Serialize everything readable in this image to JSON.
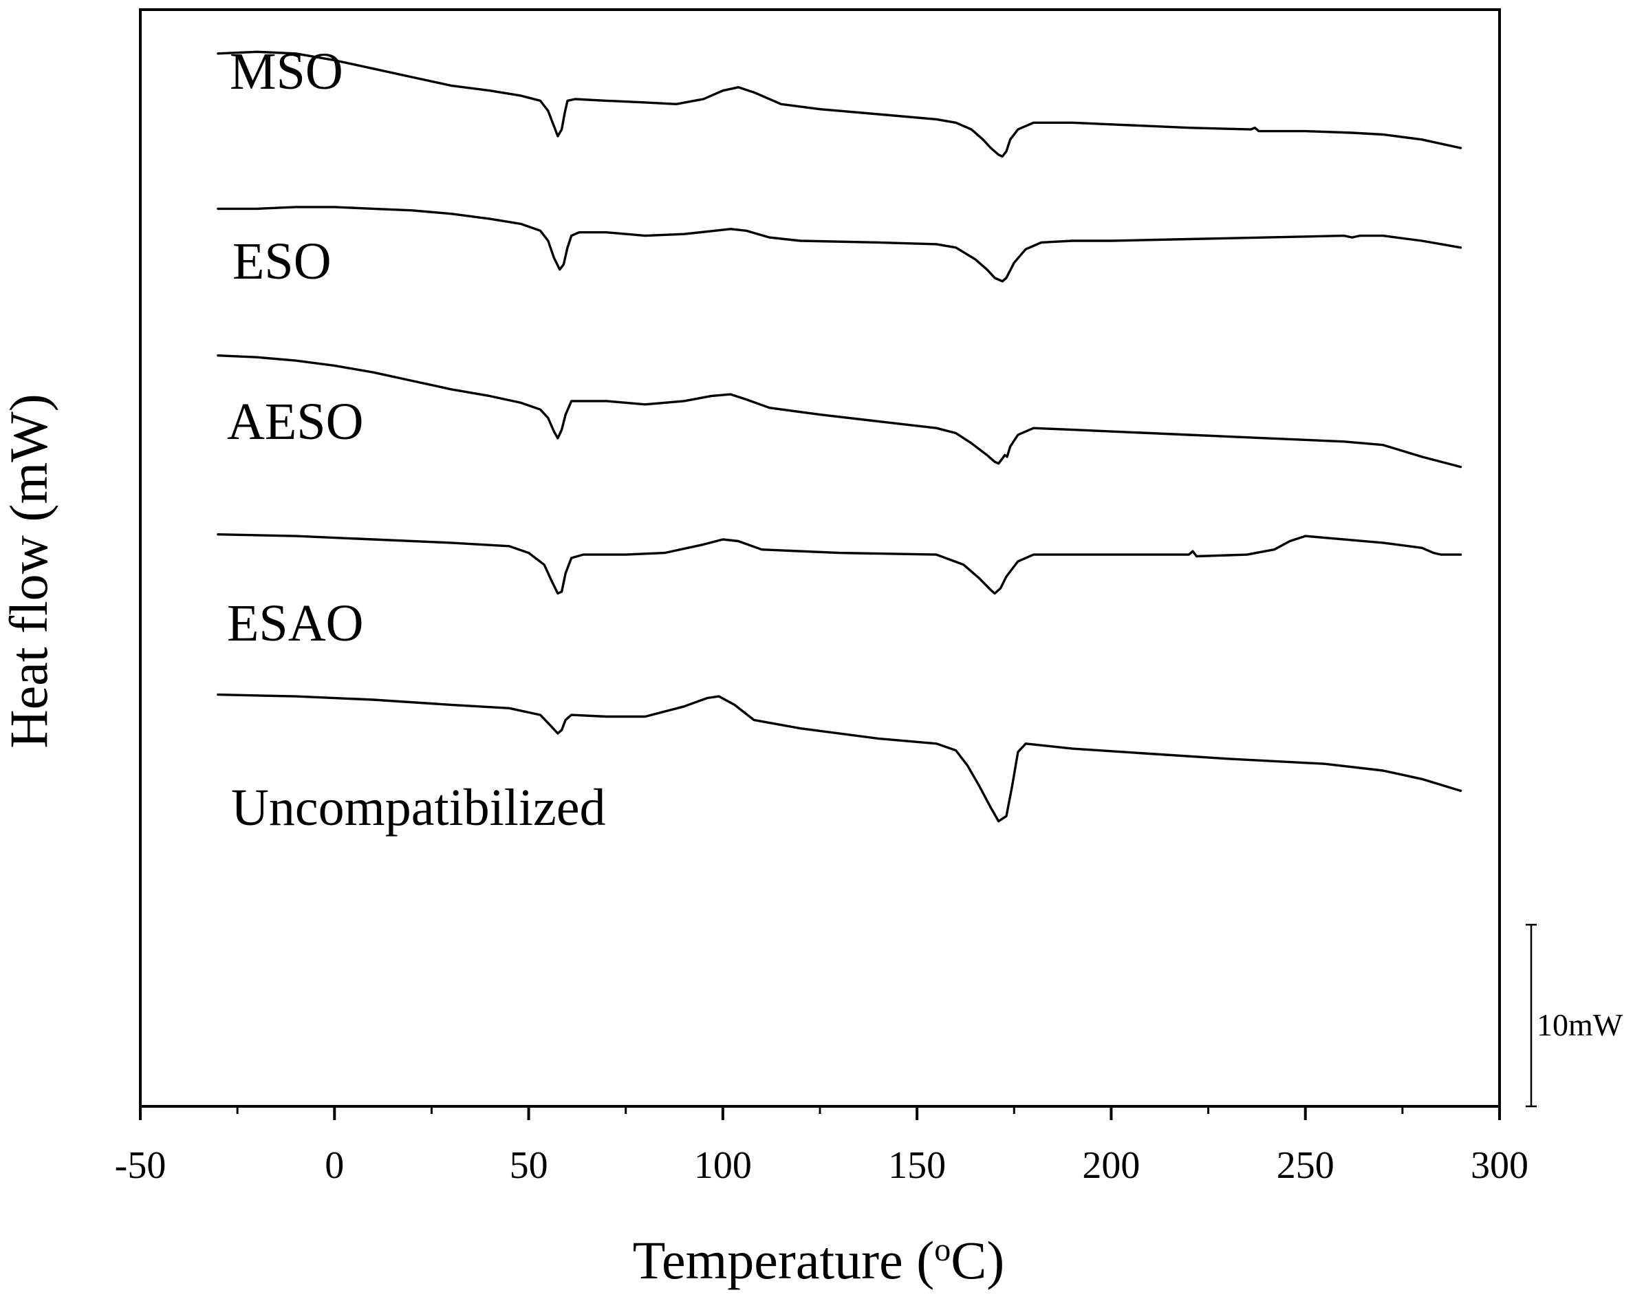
{
  "chart_data": {
    "type": "line",
    "title": "",
    "xlabel": "Temperature (",
    "xlabel_sup": "o",
    "xlabel_end": "C)",
    "ylabel": "Heat flow (mW)",
    "xlim": [
      -50,
      300
    ],
    "ylim": [
      -35,
      30
    ],
    "x_ticks": [
      -50,
      0,
      50,
      100,
      150,
      200,
      250,
      300
    ],
    "x_tick_labels": [
      "-50",
      "0",
      "50",
      "100",
      "150",
      "200",
      "250",
      "300"
    ],
    "x_minor_ticks": [
      -25,
      25,
      75,
      125,
      175,
      225,
      275
    ],
    "y_ticks_shown": false,
    "grid": false,
    "scale_bar": {
      "label": "10mW",
      "value_mW": 10
    },
    "series": [
      {
        "name": "MSO",
        "points": [
          [
            -30,
            0
          ],
          [
            -20,
            0.1
          ],
          [
            -10,
            0
          ],
          [
            0,
            -0.4
          ],
          [
            10,
            -0.9
          ],
          [
            20,
            -1.4
          ],
          [
            30,
            -1.9
          ],
          [
            40,
            -2.2
          ],
          [
            48,
            -2.5
          ],
          [
            53,
            -2.8
          ],
          [
            55,
            -3.4
          ],
          [
            56.5,
            -4.3
          ],
          [
            57.5,
            -4.9
          ],
          [
            58.5,
            -4.5
          ],
          [
            59.3,
            -3.5
          ],
          [
            60,
            -2.8
          ],
          [
            62,
            -2.7
          ],
          [
            70,
            -2.8
          ],
          [
            80,
            -2.9
          ],
          [
            88,
            -3.0
          ],
          [
            95,
            -2.7
          ],
          [
            100,
            -2.2
          ],
          [
            104,
            -2.0
          ],
          [
            108,
            -2.3
          ],
          [
            115,
            -3.0
          ],
          [
            125,
            -3.3
          ],
          [
            140,
            -3.6
          ],
          [
            155,
            -3.9
          ],
          [
            160,
            -4.1
          ],
          [
            164,
            -4.5
          ],
          [
            167,
            -5.1
          ],
          [
            169,
            -5.6
          ],
          [
            171,
            -6.0
          ],
          [
            172,
            -6.1
          ],
          [
            173,
            -5.8
          ],
          [
            174,
            -5.1
          ],
          [
            176,
            -4.5
          ],
          [
            180,
            -4.1
          ],
          [
            190,
            -4.1
          ],
          [
            200,
            -4.2
          ],
          [
            220,
            -4.4
          ],
          [
            236,
            -4.5
          ],
          [
            237,
            -4.4
          ],
          [
            238,
            -4.6
          ],
          [
            250,
            -4.6
          ],
          [
            262,
            -4.7
          ],
          [
            270,
            -4.8
          ],
          [
            280,
            -5.1
          ],
          [
            290,
            -5.6
          ]
        ]
      },
      {
        "name": "ESO",
        "points": [
          [
            -30,
            0
          ],
          [
            -20,
            0
          ],
          [
            -10,
            0.1
          ],
          [
            0,
            0.1
          ],
          [
            10,
            0
          ],
          [
            20,
            -0.1
          ],
          [
            30,
            -0.3
          ],
          [
            40,
            -0.6
          ],
          [
            48,
            -0.9
          ],
          [
            53,
            -1.3
          ],
          [
            55,
            -1.9
          ],
          [
            56.5,
            -2.9
          ],
          [
            58,
            -3.6
          ],
          [
            59,
            -3.3
          ],
          [
            60,
            -2.3
          ],
          [
            61,
            -1.6
          ],
          [
            63,
            -1.4
          ],
          [
            70,
            -1.4
          ],
          [
            80,
            -1.6
          ],
          [
            90,
            -1.5
          ],
          [
            98,
            -1.3
          ],
          [
            102,
            -1.2
          ],
          [
            106,
            -1.3
          ],
          [
            112,
            -1.7
          ],
          [
            120,
            -1.9
          ],
          [
            140,
            -2.0
          ],
          [
            155,
            -2.1
          ],
          [
            160,
            -2.3
          ],
          [
            165,
            -3.0
          ],
          [
            168,
            -3.6
          ],
          [
            170,
            -4.1
          ],
          [
            172,
            -4.3
          ],
          [
            173,
            -4.1
          ],
          [
            175,
            -3.2
          ],
          [
            178,
            -2.4
          ],
          [
            182,
            -2.0
          ],
          [
            190,
            -1.9
          ],
          [
            200,
            -1.9
          ],
          [
            220,
            -1.8
          ],
          [
            240,
            -1.7
          ],
          [
            260,
            -1.6
          ],
          [
            262,
            -1.7
          ],
          [
            264,
            -1.6
          ],
          [
            270,
            -1.6
          ],
          [
            280,
            -1.9
          ],
          [
            290,
            -2.3
          ]
        ]
      },
      {
        "name": "AESO",
        "points": [
          [
            -30,
            0
          ],
          [
            -20,
            -0.1
          ],
          [
            -10,
            -0.3
          ],
          [
            0,
            -0.6
          ],
          [
            10,
            -1.0
          ],
          [
            20,
            -1.5
          ],
          [
            30,
            -2.0
          ],
          [
            40,
            -2.4
          ],
          [
            48,
            -2.8
          ],
          [
            53,
            -3.2
          ],
          [
            55,
            -3.7
          ],
          [
            56.5,
            -4.5
          ],
          [
            57.5,
            -4.9
          ],
          [
            58.5,
            -4.4
          ],
          [
            59.5,
            -3.5
          ],
          [
            61,
            -2.7
          ],
          [
            70,
            -2.7
          ],
          [
            80,
            -2.9
          ],
          [
            90,
            -2.7
          ],
          [
            97,
            -2.4
          ],
          [
            102,
            -2.3
          ],
          [
            106,
            -2.6
          ],
          [
            112,
            -3.1
          ],
          [
            125,
            -3.5
          ],
          [
            140,
            -3.9
          ],
          [
            155,
            -4.3
          ],
          [
            160,
            -4.6
          ],
          [
            164,
            -5.2
          ],
          [
            168,
            -5.9
          ],
          [
            170,
            -6.3
          ],
          [
            171,
            -6.4
          ],
          [
            172,
            -6.1
          ],
          [
            172.6,
            -5.9
          ],
          [
            173.2,
            -6.0
          ],
          [
            174,
            -5.4
          ],
          [
            176,
            -4.7
          ],
          [
            180,
            -4.3
          ],
          [
            190,
            -4.4
          ],
          [
            200,
            -4.5
          ],
          [
            210,
            -4.6
          ],
          [
            220,
            -4.7
          ],
          [
            240,
            -4.9
          ],
          [
            260,
            -5.1
          ],
          [
            270,
            -5.3
          ],
          [
            280,
            -6.0
          ],
          [
            290,
            -6.6
          ]
        ]
      },
      {
        "name": "ESAO",
        "points": [
          [
            -30,
            0
          ],
          [
            -10,
            -0.1
          ],
          [
            10,
            -0.3
          ],
          [
            30,
            -0.5
          ],
          [
            45,
            -0.7
          ],
          [
            50,
            -1.1
          ],
          [
            54,
            -1.8
          ],
          [
            56,
            -2.8
          ],
          [
            57.5,
            -3.5
          ],
          [
            58.5,
            -3.4
          ],
          [
            59.5,
            -2.3
          ],
          [
            61,
            -1.4
          ],
          [
            64,
            -1.2
          ],
          [
            75,
            -1.2
          ],
          [
            85,
            -1.1
          ],
          [
            95,
            -0.6
          ],
          [
            100,
            -0.3
          ],
          [
            104,
            -0.4
          ],
          [
            110,
            -0.9
          ],
          [
            130,
            -1.1
          ],
          [
            155,
            -1.2
          ],
          [
            162,
            -1.8
          ],
          [
            166,
            -2.6
          ],
          [
            169,
            -3.3
          ],
          [
            170,
            -3.5
          ],
          [
            171.5,
            -3.2
          ],
          [
            173,
            -2.5
          ],
          [
            176,
            -1.6
          ],
          [
            180,
            -1.2
          ],
          [
            200,
            -1.2
          ],
          [
            220,
            -1.2
          ],
          [
            221,
            -1.0
          ],
          [
            222,
            -1.3
          ],
          [
            235,
            -1.2
          ],
          [
            242,
            -0.9
          ],
          [
            246,
            -0.4
          ],
          [
            250,
            -0.1
          ],
          [
            255,
            -0.2
          ],
          [
            270,
            -0.5
          ],
          [
            280,
            -0.8
          ],
          [
            283,
            -1.1
          ],
          [
            285,
            -1.2
          ],
          [
            290,
            -1.2
          ]
        ]
      },
      {
        "name": "Uncompatibilized",
        "points": [
          [
            -30,
            0
          ],
          [
            -10,
            -0.1
          ],
          [
            10,
            -0.3
          ],
          [
            30,
            -0.6
          ],
          [
            45,
            -0.8
          ],
          [
            53,
            -1.2
          ],
          [
            55.5,
            -1.8
          ],
          [
            57.5,
            -2.3
          ],
          [
            58.5,
            -2.1
          ],
          [
            59.5,
            -1.5
          ],
          [
            61,
            -1.2
          ],
          [
            70,
            -1.3
          ],
          [
            80,
            -1.3
          ],
          [
            90,
            -0.7
          ],
          [
            96,
            -0.2
          ],
          [
            99,
            -0.1
          ],
          [
            103,
            -0.6
          ],
          [
            108,
            -1.5
          ],
          [
            120,
            -2.0
          ],
          [
            140,
            -2.6
          ],
          [
            155,
            -2.9
          ],
          [
            160,
            -3.3
          ],
          [
            163,
            -4.2
          ],
          [
            166,
            -5.4
          ],
          [
            169,
            -6.7
          ],
          [
            171,
            -7.5
          ],
          [
            173,
            -7.2
          ],
          [
            174.5,
            -5.4
          ],
          [
            176,
            -3.4
          ],
          [
            178,
            -2.9
          ],
          [
            190,
            -3.2
          ],
          [
            210,
            -3.5
          ],
          [
            230,
            -3.8
          ],
          [
            255,
            -4.1
          ],
          [
            270,
            -4.5
          ],
          [
            280,
            -5.0
          ],
          [
            290,
            -5.7
          ]
        ]
      }
    ]
  }
}
